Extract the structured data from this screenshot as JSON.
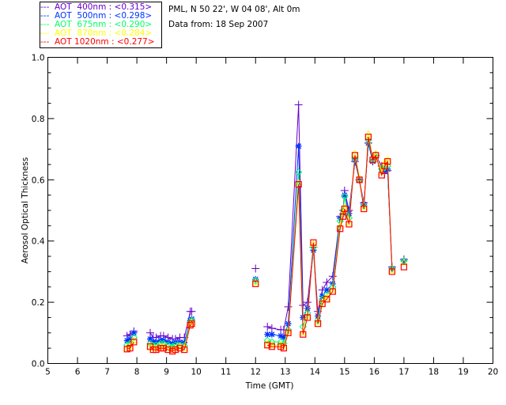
{
  "chart_data": {
    "type": "line",
    "title": "",
    "info_lines": [
      "PML, N 50 22', W 04 08', Alt 0m",
      "Data from: 18 Sep 2007"
    ],
    "xlabel": "Time (GMT)",
    "ylabel": "Aerosol Optical Thickness",
    "xlim": [
      5,
      20
    ],
    "ylim": [
      0,
      1
    ],
    "xticks": [
      "5",
      "6",
      "7",
      "8",
      "9",
      "10",
      "11",
      "12",
      "13",
      "14",
      "15",
      "16",
      "17",
      "18",
      "19",
      "20"
    ],
    "yticks": [
      "0.0",
      "0.2",
      "0.4",
      "0.6",
      "0.8",
      "1.0"
    ],
    "grid": false,
    "legend_position": "top-left, outside",
    "x": [
      7.67,
      7.77,
      7.9,
      8.45,
      8.55,
      8.65,
      8.8,
      8.9,
      9.05,
      9.2,
      9.3,
      9.45,
      9.6,
      9.8,
      9.85,
      12.0,
      12.4,
      12.55,
      12.85,
      12.95,
      13.1,
      13.45,
      13.6,
      13.75,
      13.95,
      14.1,
      14.25,
      14.4,
      14.6,
      14.85,
      14.95,
      15.0,
      15.15,
      15.35,
      15.5,
      15.65,
      15.8,
      15.95,
      16.05,
      16.25,
      16.35,
      16.45,
      16.6,
      17.0
    ],
    "series": [
      {
        "name": "AOT  400nm",
        "mean": "<0.315>",
        "legend": "---  AOT  400nm : <0.315>",
        "color": "#6600cc",
        "marker": "plus",
        "values": [
          0.09,
          0.095,
          0.105,
          0.1,
          0.085,
          0.085,
          0.09,
          0.09,
          0.085,
          0.08,
          0.08,
          0.085,
          0.085,
          0.17,
          0.17,
          0.31,
          0.12,
          0.115,
          0.11,
          0.11,
          0.185,
          0.845,
          0.19,
          0.2,
          0.38,
          0.17,
          0.24,
          0.265,
          0.285,
          0.48,
          0.5,
          0.565,
          0.5,
          0.66,
          0.6,
          0.525,
          0.72,
          0.66,
          0.68,
          0.645,
          0.62,
          0.63,
          0.315,
          0.34
        ]
      },
      {
        "name": "AOT  500nm",
        "mean": "<0.298>",
        "legend": "---  AOT  500nm : <0.298>",
        "color": "#0033ff",
        "marker": "asterisk",
        "values": [
          0.075,
          0.08,
          0.1,
          0.08,
          0.07,
          0.07,
          0.075,
          0.075,
          0.07,
          0.065,
          0.07,
          0.07,
          0.068,
          0.14,
          0.145,
          0.275,
          0.095,
          0.095,
          0.09,
          0.085,
          0.13,
          0.71,
          0.15,
          0.18,
          0.37,
          0.155,
          0.22,
          0.24,
          0.26,
          0.475,
          0.49,
          0.55,
          0.49,
          0.665,
          0.6,
          0.52,
          0.72,
          0.66,
          0.675,
          0.635,
          0.63,
          0.635,
          0.31,
          0.335
        ]
      },
      {
        "name": "AOT  675nm",
        "mean": "<0.290>",
        "legend": "---  AOT  675nm : <0.290>",
        "color": "#00ff66",
        "marker": "diamond",
        "values": [
          0.06,
          0.065,
          0.085,
          0.065,
          0.058,
          0.06,
          0.065,
          0.065,
          0.06,
          0.055,
          0.06,
          0.06,
          0.058,
          0.135,
          0.14,
          0.27,
          0.075,
          0.07,
          0.07,
          0.065,
          0.11,
          0.625,
          0.12,
          0.165,
          0.38,
          0.14,
          0.21,
          0.225,
          0.25,
          0.465,
          0.5,
          0.545,
          0.475,
          0.67,
          0.6,
          0.515,
          0.73,
          0.665,
          0.675,
          0.635,
          0.64,
          0.645,
          0.31,
          0.335
        ]
      },
      {
        "name": "AOT  870nm",
        "mean": "<0.284>",
        "legend": "---  AOT  870nm : <0.284>",
        "color": "#ffff00",
        "marker": "triangle",
        "values": [
          0.05,
          0.055,
          0.075,
          0.058,
          0.05,
          0.05,
          0.055,
          0.055,
          0.05,
          0.045,
          0.05,
          0.055,
          0.05,
          0.13,
          0.135,
          0.265,
          0.065,
          0.06,
          0.06,
          0.055,
          0.105,
          0.59,
          0.1,
          0.155,
          0.39,
          0.135,
          0.2,
          0.215,
          0.24,
          0.45,
          0.49,
          0.51,
          0.46,
          0.685,
          0.605,
          0.51,
          0.75,
          0.67,
          0.685,
          0.625,
          0.655,
          0.665,
          0.305,
          0.33
        ]
      },
      {
        "name": "AOT 1020nm",
        "mean": "<0.277>",
        "legend": "---  AOT 1020nm : <0.277>",
        "color": "#ff0000",
        "marker": "square",
        "values": [
          0.047,
          0.05,
          0.07,
          0.055,
          0.045,
          0.045,
          0.05,
          0.05,
          0.045,
          0.04,
          0.045,
          0.05,
          0.045,
          0.125,
          0.13,
          0.26,
          0.06,
          0.055,
          0.055,
          0.05,
          0.1,
          0.585,
          0.095,
          0.15,
          0.395,
          0.13,
          0.195,
          0.21,
          0.235,
          0.44,
          0.48,
          0.505,
          0.455,
          0.68,
          0.6,
          0.505,
          0.74,
          0.665,
          0.68,
          0.615,
          0.645,
          0.66,
          0.3,
          0.315
        ]
      }
    ]
  }
}
